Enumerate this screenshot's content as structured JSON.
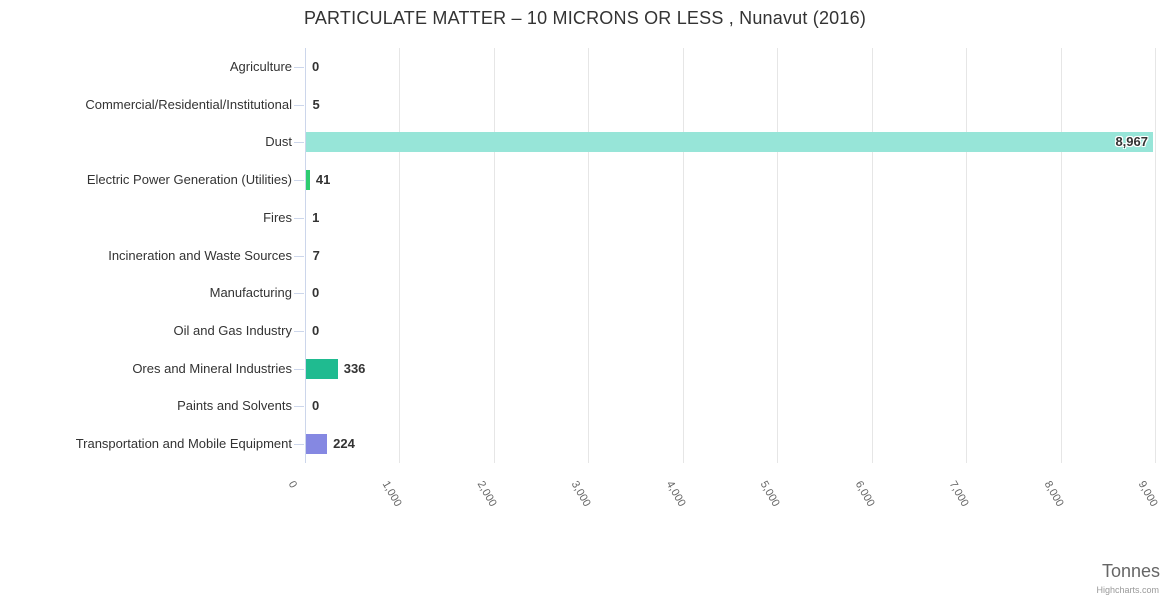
{
  "chart_data": {
    "type": "bar",
    "orientation": "horizontal",
    "title": "PARTICULATE MATTER – 10 MICRONS OR LESS , Nunavut (2016)",
    "xlabel": "Tonnes",
    "ylabel": "",
    "categories": [
      "Agriculture",
      "Commercial/Residential/Institutional",
      "Dust",
      "Electric Power Generation (Utilities)",
      "Fires",
      "Incineration and Waste Sources",
      "Manufacturing",
      "Oil and Gas Industry",
      "Ores and Mineral Industries",
      "Paints and Solvents",
      "Transportation and Mobile Equipment"
    ],
    "values": [
      0,
      5,
      8967,
      41,
      1,
      7,
      0,
      0,
      336,
      0,
      224
    ],
    "value_labels": [
      "0",
      "5",
      "8,967",
      "41",
      "1",
      "7",
      "0",
      "0",
      "336",
      "0",
      "224"
    ],
    "bar_colors": [
      null,
      null,
      "#97e5d8",
      "#2ecc71",
      null,
      null,
      null,
      null,
      "#1fbb90",
      null,
      "#8588e2"
    ],
    "xlim": [
      0,
      9000
    ],
    "tick_interval": 1000,
    "tick_labels": [
      "0",
      "1,000",
      "2,000",
      "3,000",
      "4,000",
      "5,000",
      "6,000",
      "7,000",
      "8,000",
      "9,000"
    ],
    "grid": "vertical",
    "legend": "none"
  },
  "credits": {
    "label": "Highcharts.com"
  },
  "colors": {
    "gridline": "#e6e6e6",
    "axis_line": "#ccd6eb",
    "category_label": "#333333",
    "value_label": "#333333",
    "tick_label": "#666666",
    "axis_title": "#666666",
    "credits": "#999999"
  }
}
